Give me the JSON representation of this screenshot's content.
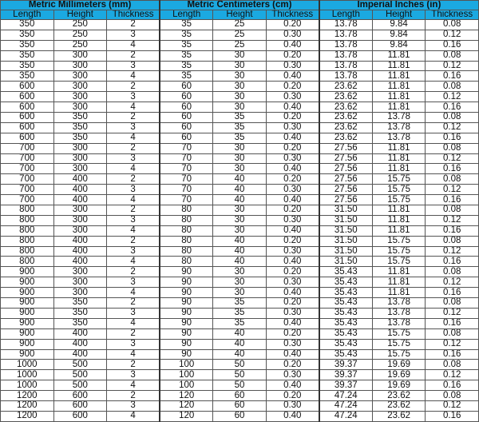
{
  "groups": [
    "Metric Millimeters (mm)",
    "Metric Centimeters (cm)",
    "Imperial Inches (in)"
  ],
  "columns": [
    "Length",
    "Height",
    "Thickness",
    "Length",
    "Height",
    "Thickness",
    "Length",
    "Height",
    "Thickness"
  ],
  "header_color": "#1ba9e1",
  "rows": [
    [
      "350",
      "250",
      "2",
      "35",
      "25",
      "0.20",
      "13.78",
      "9.84",
      "0.08"
    ],
    [
      "350",
      "250",
      "3",
      "35",
      "25",
      "0.30",
      "13.78",
      "9.84",
      "0.12"
    ],
    [
      "350",
      "250",
      "4",
      "35",
      "25",
      "0.40",
      "13.78",
      "9.84",
      "0.16"
    ],
    [
      "350",
      "300",
      "2",
      "35",
      "30",
      "0.20",
      "13.78",
      "11.81",
      "0.08"
    ],
    [
      "350",
      "300",
      "3",
      "35",
      "30",
      "0.30",
      "13.78",
      "11.81",
      "0.12"
    ],
    [
      "350",
      "300",
      "4",
      "35",
      "30",
      "0.40",
      "13.78",
      "11.81",
      "0.16"
    ],
    [
      "600",
      "300",
      "2",
      "60",
      "30",
      "0.20",
      "23.62",
      "11.81",
      "0.08"
    ],
    [
      "600",
      "300",
      "3",
      "60",
      "30",
      "0.30",
      "23.62",
      "11.81",
      "0.12"
    ],
    [
      "600",
      "300",
      "4",
      "60",
      "30",
      "0.40",
      "23.62",
      "11.81",
      "0.16"
    ],
    [
      "600",
      "350",
      "2",
      "60",
      "35",
      "0.20",
      "23.62",
      "13.78",
      "0.08"
    ],
    [
      "600",
      "350",
      "3",
      "60",
      "35",
      "0.30",
      "23.62",
      "13.78",
      "0.12"
    ],
    [
      "600",
      "350",
      "4",
      "60",
      "35",
      "0.40",
      "23.62",
      "13.78",
      "0.16"
    ],
    [
      "700",
      "300",
      "2",
      "70",
      "30",
      "0.20",
      "27.56",
      "11.81",
      "0.08"
    ],
    [
      "700",
      "300",
      "3",
      "70",
      "30",
      "0.30",
      "27.56",
      "11.81",
      "0.12"
    ],
    [
      "700",
      "300",
      "4",
      "70",
      "30",
      "0.40",
      "27.56",
      "11.81",
      "0.16"
    ],
    [
      "700",
      "400",
      "2",
      "70",
      "40",
      "0.20",
      "27.56",
      "15.75",
      "0.08"
    ],
    [
      "700",
      "400",
      "3",
      "70",
      "40",
      "0.30",
      "27.56",
      "15.75",
      "0.12"
    ],
    [
      "700",
      "400",
      "4",
      "70",
      "40",
      "0.40",
      "27.56",
      "15.75",
      "0.16"
    ],
    [
      "800",
      "300",
      "2",
      "80",
      "30",
      "0.20",
      "31.50",
      "11.81",
      "0.08"
    ],
    [
      "800",
      "300",
      "3",
      "80",
      "30",
      "0.30",
      "31.50",
      "11.81",
      "0.12"
    ],
    [
      "800",
      "300",
      "4",
      "80",
      "30",
      "0.40",
      "31.50",
      "11.81",
      "0.16"
    ],
    [
      "800",
      "400",
      "2",
      "80",
      "40",
      "0.20",
      "31.50",
      "15.75",
      "0.08"
    ],
    [
      "800",
      "400",
      "3",
      "80",
      "40",
      "0.30",
      "31.50",
      "15.75",
      "0.12"
    ],
    [
      "800",
      "400",
      "4",
      "80",
      "40",
      "0.40",
      "31.50",
      "15.75",
      "0.16"
    ],
    [
      "900",
      "300",
      "2",
      "90",
      "30",
      "0.20",
      "35.43",
      "11.81",
      "0.08"
    ],
    [
      "900",
      "300",
      "3",
      "90",
      "30",
      "0.30",
      "35.43",
      "11.81",
      "0.12"
    ],
    [
      "900",
      "300",
      "4",
      "90",
      "30",
      "0.40",
      "35.43",
      "11.81",
      "0.16"
    ],
    [
      "900",
      "350",
      "2",
      "90",
      "35",
      "0.20",
      "35.43",
      "13.78",
      "0.08"
    ],
    [
      "900",
      "350",
      "3",
      "90",
      "35",
      "0.30",
      "35.43",
      "13.78",
      "0.12"
    ],
    [
      "900",
      "350",
      "4",
      "90",
      "35",
      "0.40",
      "35.43",
      "13.78",
      "0.16"
    ],
    [
      "900",
      "400",
      "2",
      "90",
      "40",
      "0.20",
      "35.43",
      "15.75",
      "0.08"
    ],
    [
      "900",
      "400",
      "3",
      "90",
      "40",
      "0.30",
      "35.43",
      "15.75",
      "0.12"
    ],
    [
      "900",
      "400",
      "4",
      "90",
      "40",
      "0.40",
      "35.43",
      "15.75",
      "0.16"
    ],
    [
      "1000",
      "500",
      "2",
      "100",
      "50",
      "0.20",
      "39.37",
      "19.69",
      "0.08"
    ],
    [
      "1000",
      "500",
      "3",
      "100",
      "50",
      "0.30",
      "39.37",
      "19.69",
      "0.12"
    ],
    [
      "1000",
      "500",
      "4",
      "100",
      "50",
      "0.40",
      "39.37",
      "19.69",
      "0.16"
    ],
    [
      "1200",
      "600",
      "2",
      "120",
      "60",
      "0.20",
      "47.24",
      "23.62",
      "0.08"
    ],
    [
      "1200",
      "600",
      "3",
      "120",
      "60",
      "0.30",
      "47.24",
      "23.62",
      "0.12"
    ],
    [
      "1200",
      "600",
      "4",
      "120",
      "60",
      "0.40",
      "47.24",
      "23.62",
      "0.16"
    ]
  ]
}
